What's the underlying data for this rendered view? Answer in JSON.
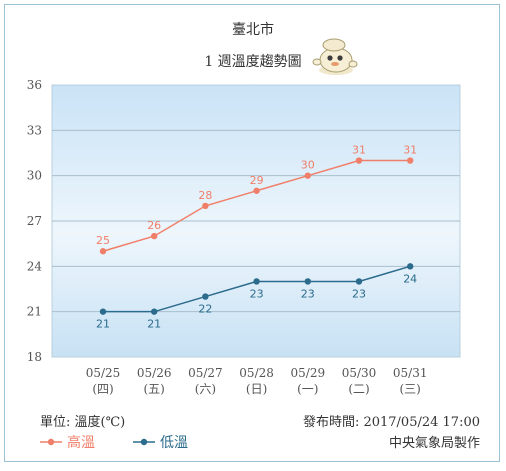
{
  "chart_data": {
    "type": "line",
    "title": "臺北市",
    "subtitle": "1 週溫度趨勢圖",
    "categories": [
      "05/25",
      "05/26",
      "05/27",
      "05/28",
      "05/29",
      "05/30",
      "05/31"
    ],
    "weekdays": [
      "(四)",
      "(五)",
      "(六)",
      "(日)",
      "(一)",
      "(二)",
      "(三)"
    ],
    "yticks": [
      18,
      21,
      24,
      27,
      30,
      33,
      36
    ],
    "ylim": [
      18,
      36
    ],
    "grid": true,
    "series": [
      {
        "name": "高溫",
        "color": "#f07f69",
        "values": [
          25,
          26,
          28,
          29,
          30,
          31,
          31
        ]
      },
      {
        "name": "低溫",
        "color": "#2b6b8c",
        "values": [
          21,
          21,
          22,
          23,
          23,
          23,
          24
        ]
      }
    ],
    "legend_position": "bottom-left"
  },
  "footer": {
    "unit": "單位: 溫度(℃)",
    "issued": "發布時間: 2017/05/24 17:00",
    "credit": "中央氣象局製作"
  },
  "icons": {
    "mascot": "cartoon-mascot-icon"
  }
}
